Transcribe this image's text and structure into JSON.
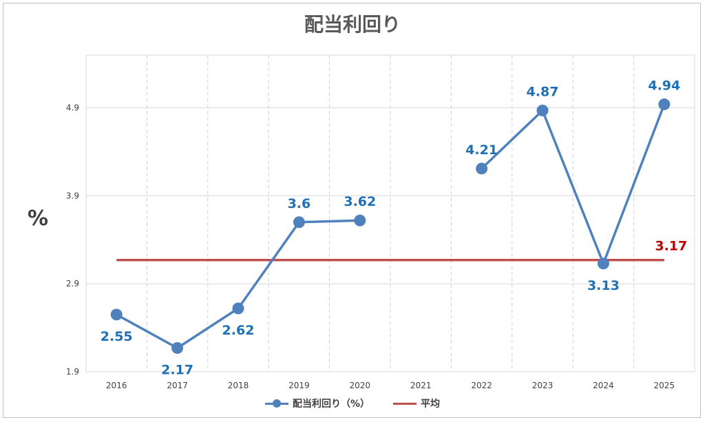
{
  "chart_data": {
    "type": "line",
    "title": "配当利回り",
    "ylabel": "%",
    "xlabel": "",
    "categories": [
      "2016",
      "2017",
      "2018",
      "2019",
      "2020",
      "2021",
      "2022",
      "2023",
      "2024",
      "2025"
    ],
    "ylim": [
      1.9,
      5.5
    ],
    "yticks": [
      "1.9",
      "2.9",
      "3.9",
      "4.9"
    ],
    "grid": true,
    "legend_position": "bottom",
    "series": [
      {
        "name": "配当利回り（%）",
        "values": [
          2.55,
          2.17,
          2.62,
          3.6,
          3.62,
          null,
          4.21,
          4.87,
          3.13,
          4.94
        ],
        "labels": [
          "2.55",
          "2.17",
          "2.62",
          "3.6",
          "3.62",
          "",
          "4.21",
          "4.87",
          "3.13",
          "4.94"
        ],
        "color": "#4f81bd",
        "label_color": "#1f6fb5"
      },
      {
        "name": "平均",
        "value": 3.17,
        "label": "3.17",
        "color": "#c0504d",
        "label_color": "#c00000"
      }
    ]
  }
}
